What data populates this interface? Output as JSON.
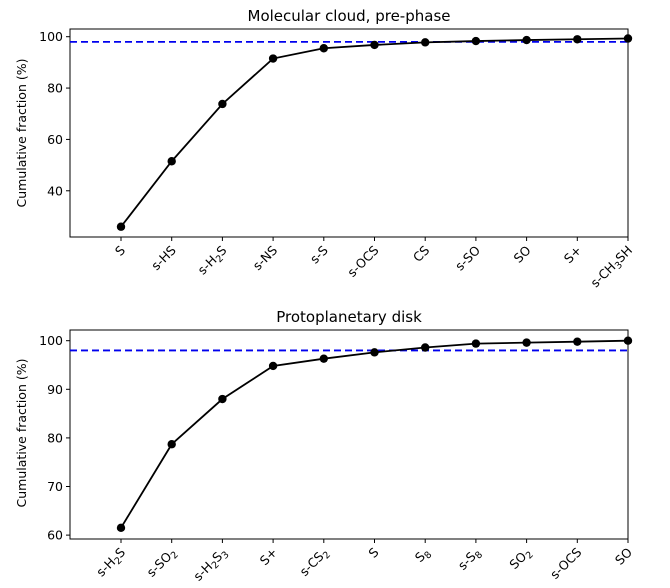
{
  "chart_data": [
    {
      "type": "line",
      "title": "Molecular cloud, pre-phase",
      "ylabel": "Cumulative fraction (%)",
      "xlabel": "",
      "categories": [
        {
          "base": "S",
          "subs": []
        },
        {
          "base": "s-HS",
          "subs": []
        },
        {
          "base": "s-H",
          "subs": [
            {
              "text": "2"
            },
            {
              "text": "S",
              "plain": true
            }
          ]
        },
        {
          "base": "s-NS",
          "subs": []
        },
        {
          "base": "s-S",
          "subs": []
        },
        {
          "base": "s-OCS",
          "subs": []
        },
        {
          "base": "CS",
          "subs": []
        },
        {
          "base": "s-SO",
          "subs": []
        },
        {
          "base": "SO",
          "subs": []
        },
        {
          "base": "S+",
          "subs": []
        },
        {
          "base": "s-CH",
          "subs": [
            {
              "text": "3"
            },
            {
              "text": "SH",
              "plain": true
            }
          ]
        }
      ],
      "category_labels": [
        "S",
        "s-HS",
        "s-H2S",
        "s-NS",
        "s-S",
        "s-OCS",
        "CS",
        "s-SO",
        "SO",
        "S+",
        "s-CH3SH"
      ],
      "values": [
        26,
        51.5,
        73.8,
        91.5,
        95.5,
        96.8,
        97.8,
        98.3,
        98.7,
        99.0,
        99.3
      ],
      "reference_line": 98,
      "ylim": [
        22,
        103
      ],
      "yticks": [
        40,
        60,
        80,
        100
      ],
      "grid": false
    },
    {
      "type": "line",
      "title": "Protoplanetary disk",
      "ylabel": "Cumulative fraction (%)",
      "xlabel": "",
      "categories": [
        {
          "base": "s-H",
          "subs": [
            {
              "text": "2"
            },
            {
              "text": "S",
              "plain": true
            }
          ]
        },
        {
          "base": "s-SO",
          "subs": [
            {
              "text": "2"
            }
          ]
        },
        {
          "base": "s-H",
          "subs": [
            {
              "text": "2"
            },
            {
              "text": "S",
              "plain": true
            },
            {
              "text": "3"
            }
          ]
        },
        {
          "base": "S+",
          "subs": []
        },
        {
          "base": "s-CS",
          "subs": [
            {
              "text": "2"
            }
          ]
        },
        {
          "base": "S",
          "subs": []
        },
        {
          "base": "S",
          "subs": [
            {
              "text": "8"
            }
          ]
        },
        {
          "base": "s-S",
          "subs": [
            {
              "text": "8"
            }
          ]
        },
        {
          "base": "SO",
          "subs": [
            {
              "text": "2"
            }
          ]
        },
        {
          "base": "s-OCS",
          "subs": []
        },
        {
          "base": "SO",
          "subs": []
        }
      ],
      "category_labels": [
        "s-H2S",
        "s-SO2",
        "s-H2S3",
        "S+",
        "s-CS2",
        "S",
        "S8",
        "s-S8",
        "SO2",
        "s-OCS",
        "SO"
      ],
      "values": [
        61.5,
        78.7,
        88.0,
        94.8,
        96.3,
        97.6,
        98.6,
        99.4,
        99.6,
        99.8,
        100.0
      ],
      "reference_line": 98,
      "ylim": [
        59.2,
        102.2
      ],
      "yticks": [
        60,
        70,
        80,
        90,
        100
      ],
      "grid": false
    }
  ]
}
